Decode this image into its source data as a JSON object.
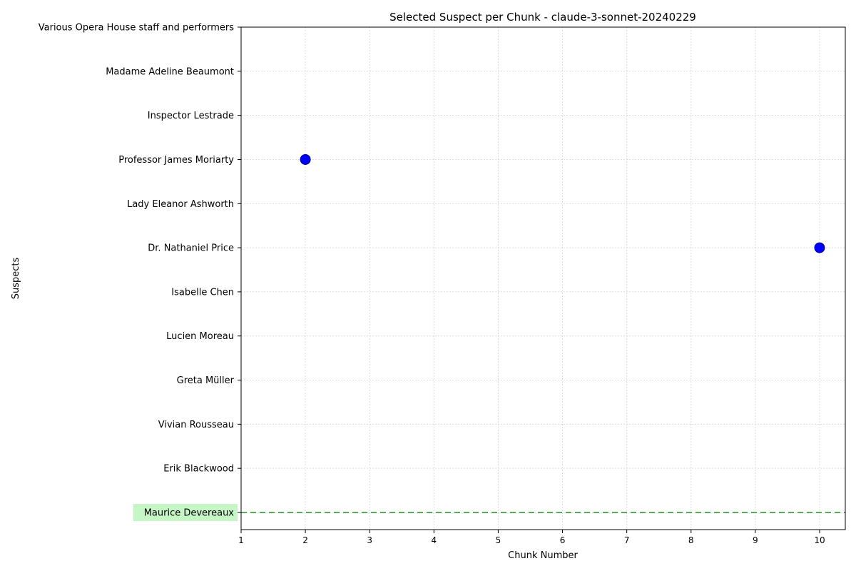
{
  "chart_data": {
    "type": "scatter",
    "title": "Selected Suspect per Chunk - claude-3-sonnet-20240229",
    "xlabel": "Chunk Number",
    "ylabel": "Suspects",
    "xlim": [
      1,
      10.4
    ],
    "x_ticks": [
      1,
      2,
      3,
      4,
      5,
      6,
      7,
      8,
      9,
      10
    ],
    "categories": [
      "Maurice Devereaux",
      "Erik Blackwood",
      "Vivian Rousseau",
      "Greta Müller",
      "Lucien Moreau",
      "Isabelle Chen",
      "Dr. Nathaniel Price",
      "Lady Eleanor Ashworth",
      "Professor James Moriarty",
      "Inspector Lestrade",
      "Madame Adeline Beaumont",
      "Various Opera House staff and performers"
    ],
    "points": [
      {
        "x": 2,
        "y": "Professor James Moriarty"
      },
      {
        "x": 10,
        "y": "Dr. Nathaniel Price"
      }
    ],
    "highlight": {
      "suspect": "Maurice Devereaux",
      "color": "#c6f5c6",
      "line_color": "#5aaa5a"
    },
    "point_color": "#0000ff",
    "grid": true
  }
}
